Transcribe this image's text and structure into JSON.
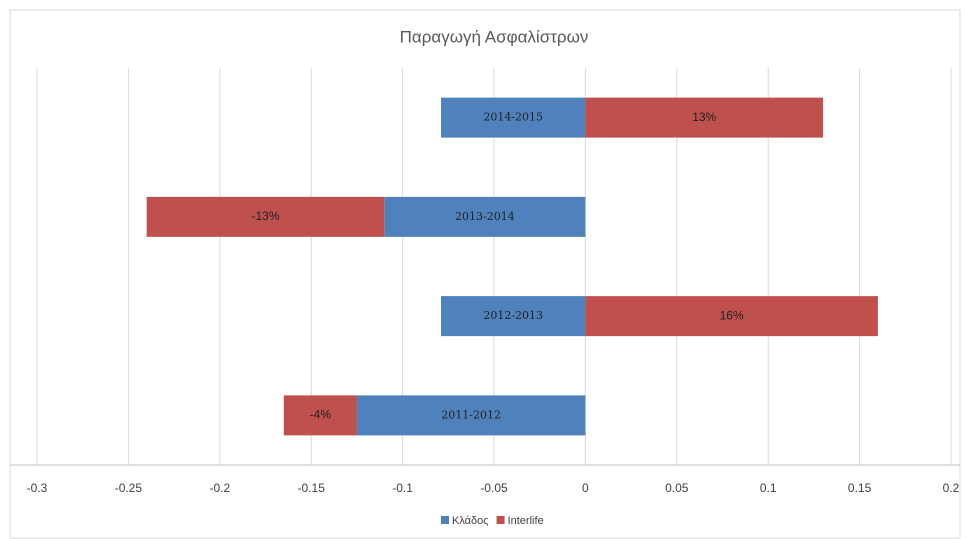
{
  "chart_data": {
    "type": "bar",
    "orientation": "horizontal",
    "stacked": true,
    "title": "Παραγωγή Ασφαλίστρων",
    "categories": [
      "2011-2012",
      "2012-2013",
      "2013-2014",
      "2014-2015"
    ],
    "series": [
      {
        "name": "Κλάδος",
        "color": "#4f81bd",
        "values": [
          -0.125,
          -0.079,
          -0.11,
          -0.079
        ]
      },
      {
        "name": "Interlife",
        "color": "#c0504d",
        "values": [
          -0.04,
          0.16,
          -0.13,
          0.13
        ],
        "value_labels": [
          "-4%",
          "16%",
          "-13%",
          "13%"
        ]
      }
    ],
    "xlim": [
      -0.3,
      0.2
    ],
    "xticks": [
      -0.3,
      -0.25,
      -0.2,
      -0.15,
      -0.1,
      -0.05,
      0,
      0.05,
      0.1,
      0.15,
      0.2
    ],
    "grid": true,
    "legend": "bottom"
  }
}
